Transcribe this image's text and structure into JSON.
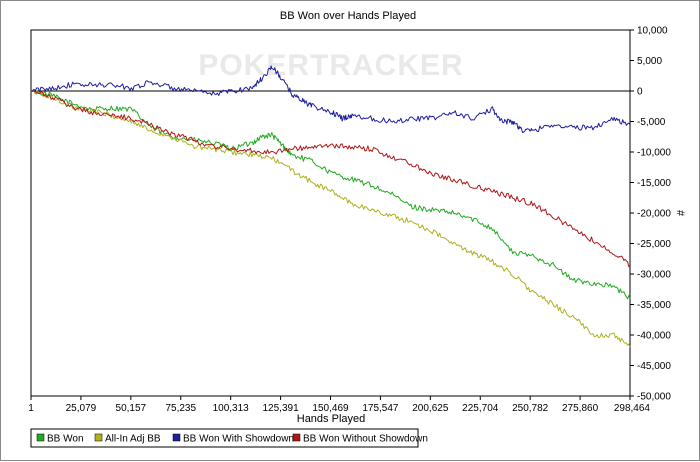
{
  "chart_data": {
    "type": "line",
    "title": "BB Won over Hands Played",
    "xlabel": "Hands Played",
    "ylabel": "#",
    "watermark": "POKERTRACKER",
    "xlim": [
      1,
      298464
    ],
    "ylim": [
      -50000,
      10000
    ],
    "x_ticks": [
      "1",
      "25,079",
      "50,157",
      "75,235",
      "100,313",
      "125,391",
      "150,469",
      "175,547",
      "200,625",
      "225,704",
      "250,782",
      "275,860",
      "298,464"
    ],
    "y_ticks": [
      "10,000",
      "5,000",
      "0",
      "-5,000",
      "-10,000",
      "-15,000",
      "-20,000",
      "-25,000",
      "-30,000",
      "-35,000",
      "-40,000",
      "-45,000",
      "-50,000"
    ],
    "grid": false,
    "legend_position": "bottom",
    "series": [
      {
        "name": "BB Won",
        "color": "#22aa22",
        "x": [
          1,
          10000,
          20000,
          30000,
          40000,
          50000,
          60000,
          70000,
          80000,
          90000,
          100000,
          110000,
          115000,
          120000,
          125000,
          130000,
          140000,
          150000,
          160000,
          170000,
          180000,
          190000,
          200000,
          210000,
          220000,
          230000,
          240000,
          250000,
          260000,
          270000,
          280000,
          290000,
          298464
        ],
        "y": [
          0,
          -700,
          -2000,
          -3000,
          -2800,
          -3000,
          -6000,
          -7500,
          -8000,
          -8500,
          -9500,
          -8500,
          -7500,
          -7200,
          -8800,
          -10500,
          -11500,
          -13500,
          -14500,
          -15500,
          -17000,
          -19000,
          -19500,
          -20000,
          -21000,
          -22500,
          -26500,
          -27000,
          -28500,
          -31000,
          -31500,
          -32000,
          -34000
        ]
      },
      {
        "name": "All-In Adj BB",
        "color": "#b0b020",
        "x": [
          1,
          10000,
          20000,
          30000,
          40000,
          50000,
          60000,
          70000,
          80000,
          90000,
          100000,
          110000,
          120000,
          130000,
          140000,
          150000,
          160000,
          170000,
          180000,
          190000,
          200000,
          210000,
          220000,
          230000,
          240000,
          250000,
          260000,
          270000,
          280000,
          290000,
          298464
        ],
        "y": [
          0,
          -1000,
          -2500,
          -3200,
          -4000,
          -5000,
          -6500,
          -7500,
          -9000,
          -9500,
          -10000,
          -10500,
          -11000,
          -13000,
          -15000,
          -16500,
          -18500,
          -19500,
          -20500,
          -21500,
          -23000,
          -25000,
          -26500,
          -28000,
          -30000,
          -33000,
          -35000,
          -37000,
          -40000,
          -40000,
          -42000
        ]
      },
      {
        "name": "BB Won With Showdown",
        "color": "#1f1f9f",
        "x": [
          1,
          10000,
          20000,
          30000,
          40000,
          50000,
          60000,
          70000,
          80000,
          90000,
          100000,
          110000,
          115000,
          120000,
          125000,
          130000,
          135000,
          140000,
          150000,
          155000,
          160000,
          170000,
          180000,
          190000,
          200000,
          210000,
          220000,
          230000,
          235000,
          240000,
          245000,
          250000,
          260000,
          270000,
          280000,
          290000,
          298464
        ],
        "y": [
          0,
          500,
          1000,
          1000,
          1000,
          500,
          1500,
          500,
          0,
          -500,
          0,
          500,
          2000,
          4000,
          2000,
          -500,
          -1500,
          -2500,
          -3500,
          -4500,
          -4000,
          -4500,
          -5000,
          -4500,
          -4500,
          -3500,
          -4500,
          -3000,
          -5000,
          -5000,
          -6500,
          -6500,
          -5500,
          -6000,
          -6000,
          -4500,
          -5500
        ]
      },
      {
        "name": "BB Won Without Showdown",
        "color": "#b01818",
        "x": [
          1,
          10000,
          20000,
          30000,
          40000,
          50000,
          60000,
          70000,
          80000,
          90000,
          100000,
          110000,
          120000,
          130000,
          140000,
          150000,
          160000,
          170000,
          180000,
          190000,
          200000,
          210000,
          220000,
          230000,
          240000,
          250000,
          260000,
          270000,
          280000,
          290000,
          298464
        ],
        "y": [
          0,
          -1000,
          -2500,
          -3500,
          -4000,
          -4500,
          -5500,
          -7000,
          -8000,
          -9000,
          -9500,
          -9800,
          -10000,
          -9500,
          -9200,
          -9000,
          -9200,
          -9500,
          -10800,
          -12000,
          -13500,
          -14500,
          -15500,
          -16500,
          -17500,
          -18500,
          -20500,
          -22500,
          -24500,
          -26500,
          -28500
        ]
      }
    ]
  }
}
